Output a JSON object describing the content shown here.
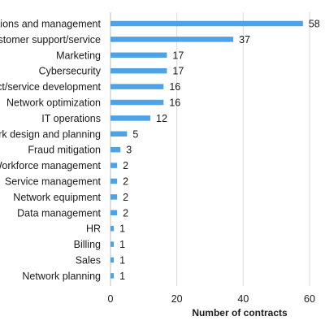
{
  "chart_data": {
    "type": "bar",
    "orientation": "horizontal",
    "categories": [
      "Operations and management",
      "Customer support/service",
      "Marketing",
      "Cybersecurity",
      "Product/service development",
      "Network optimization",
      "IT operations",
      "Network design and planning",
      "Fraud mitigation",
      "Workforce management",
      "Service management",
      "Network equipment",
      "Data management",
      "HR",
      "Billing",
      "Sales",
      "Network planning"
    ],
    "values": [
      58,
      37,
      17,
      17,
      16,
      16,
      12,
      5,
      3,
      2,
      2,
      2,
      2,
      1,
      1,
      1,
      1
    ],
    "title": "",
    "xlabel": "Number of contracts",
    "ylabel": "",
    "xlim": [
      0,
      60
    ],
    "xticks": [
      0,
      20,
      40,
      60
    ],
    "grid": "vertical",
    "legend": "none",
    "data_labels": true,
    "colors": {
      "bar": "#4da3e8",
      "grid": "#d9d9d9",
      "axis": "#bfbfbf"
    }
  }
}
